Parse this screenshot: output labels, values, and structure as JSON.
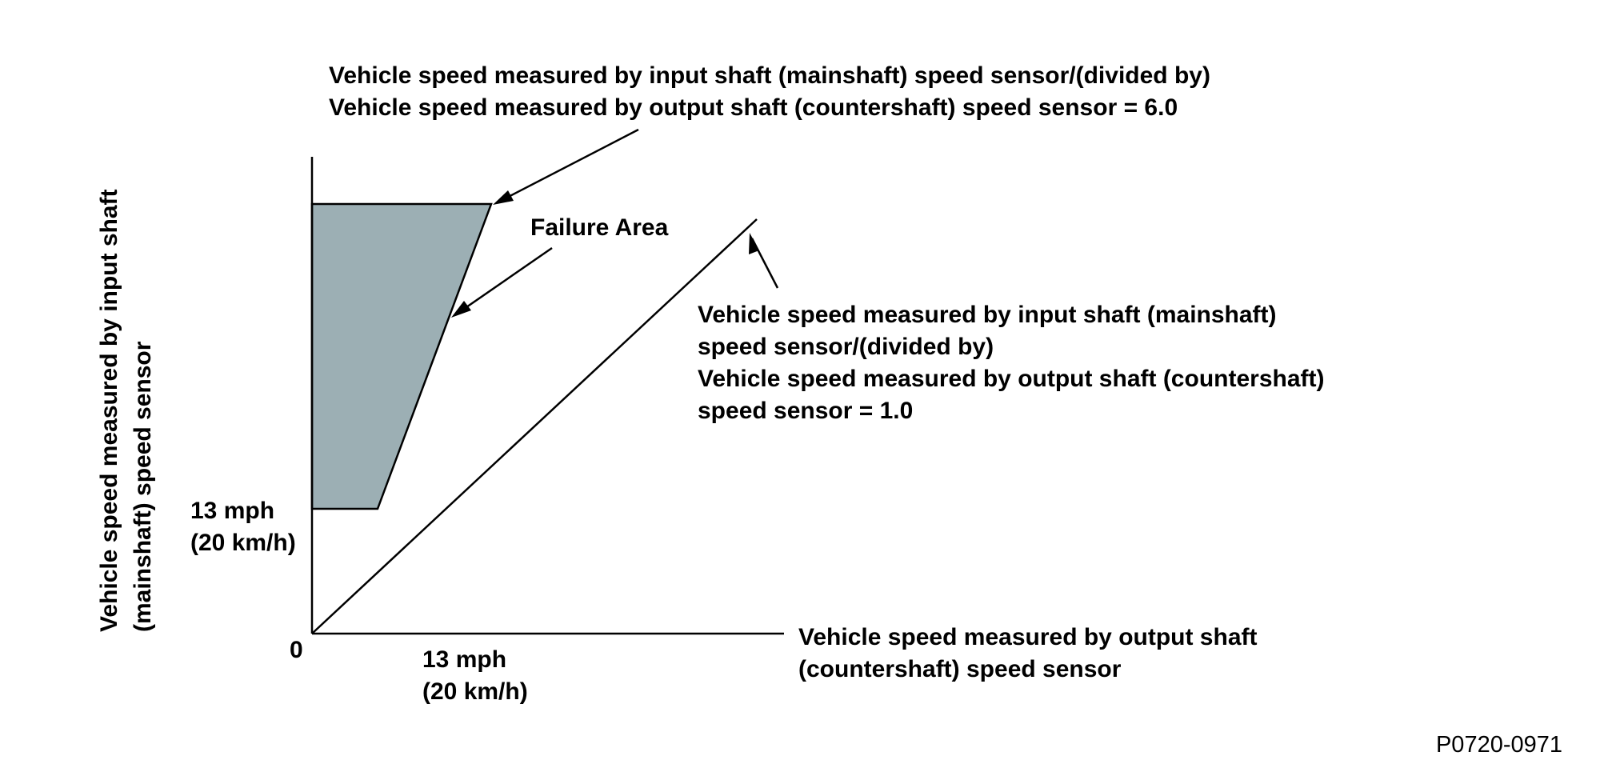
{
  "colors": {
    "failure_area_fill": "#9cafb4",
    "line": "#000000",
    "background": "#ffffff"
  },
  "annotations": {
    "ratio_6": [
      "Vehicle speed measured by input shaft (mainshaft) speed sensor/(divided by)",
      "Vehicle speed measured by output shaft (countershaft) speed sensor = 6.0"
    ],
    "failure_area": "Failure Area",
    "ratio_1": [
      "Vehicle speed measured by input shaft (mainshaft)",
      "speed sensor/(divided by)",
      "Vehicle speed measured by output shaft (countershaft)",
      "speed sensor = 1.0"
    ]
  },
  "axes": {
    "y_label": [
      "Vehicle speed measured by input shaft",
      "(mainshaft) speed sensor"
    ],
    "x_label": [
      "Vehicle speed measured by output shaft",
      "(countershaft) speed sensor"
    ],
    "origin": "0",
    "y_threshold": [
      "13 mph",
      "(20 km/h)"
    ],
    "x_threshold": [
      "13 mph",
      "(20 km/h)"
    ]
  },
  "figure_code": "P0720-0971"
}
